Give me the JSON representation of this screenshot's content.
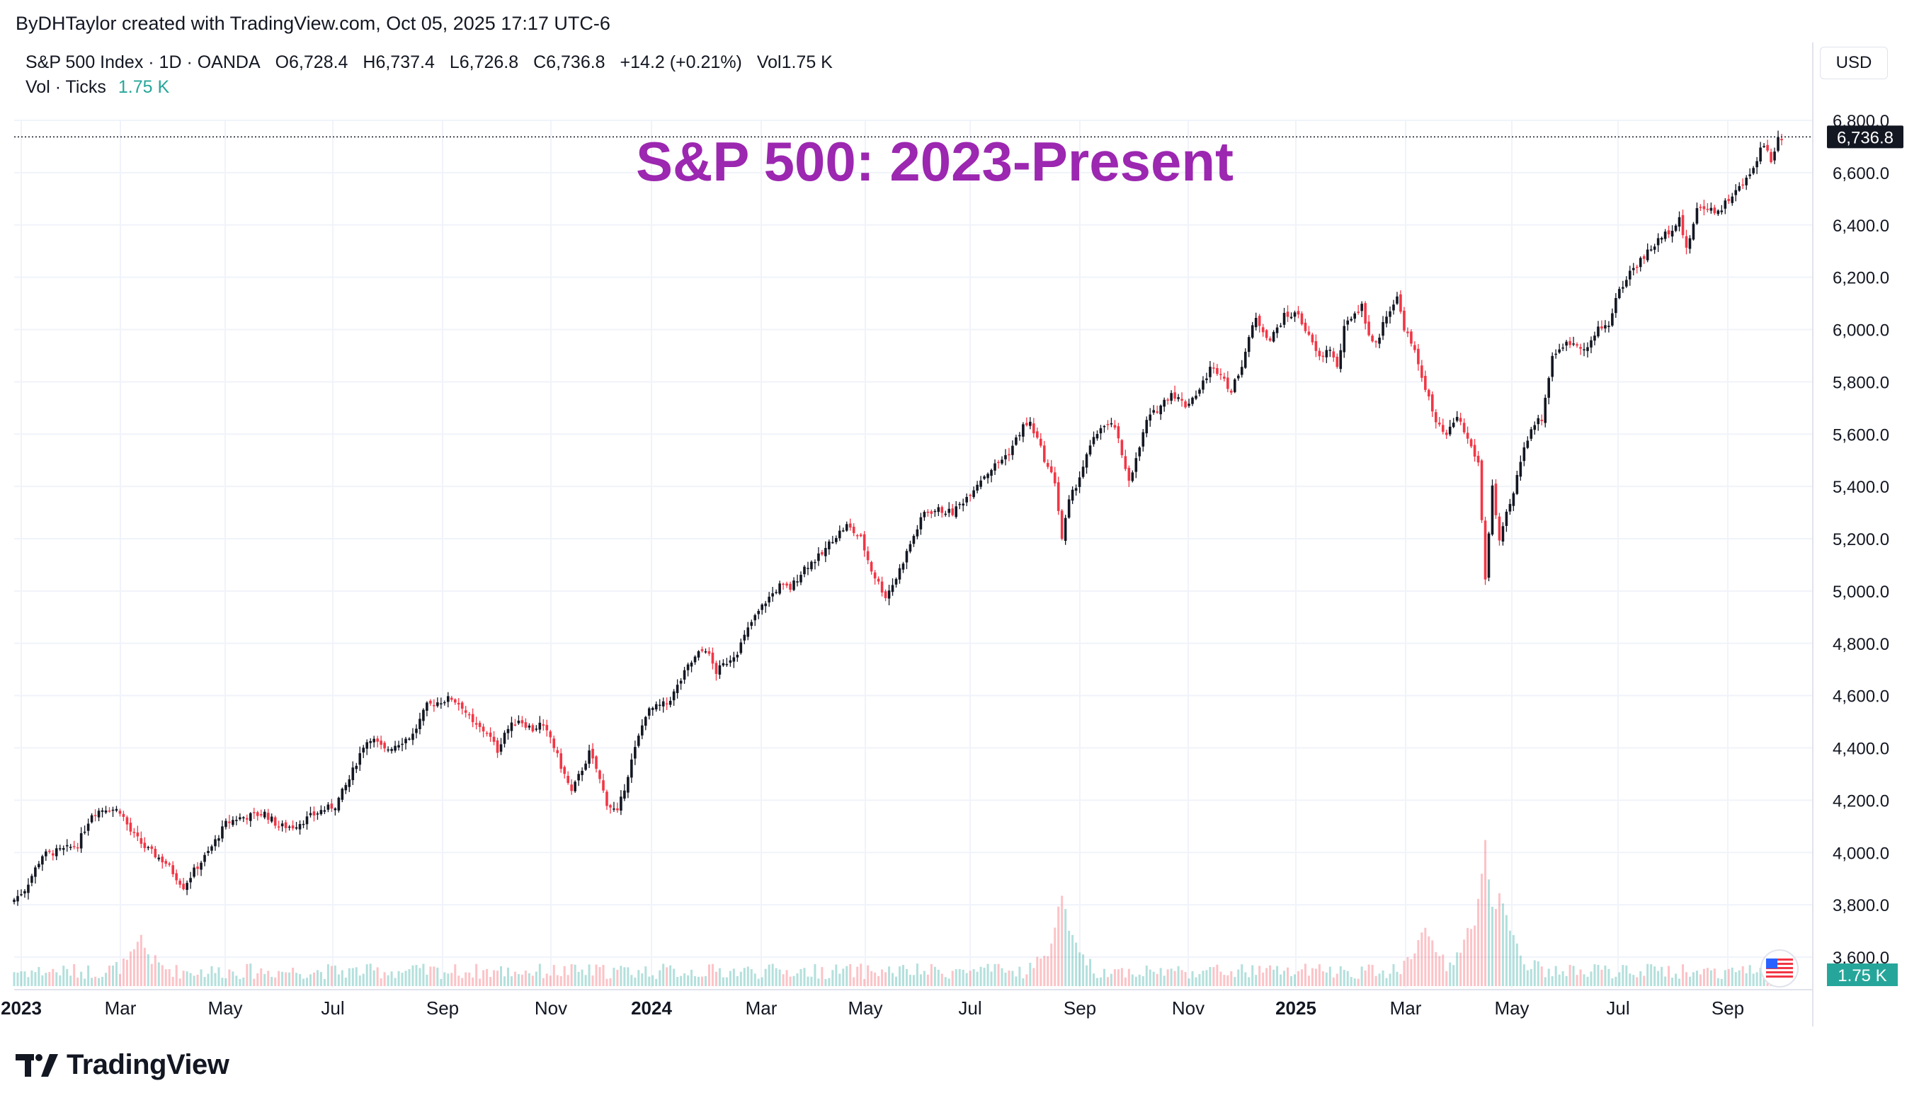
{
  "header": {
    "attribution": "ByDHTaylor created with TradingView.com, Oct 05, 2025 17:17 UTC-6"
  },
  "legend": {
    "symbol": "S&P 500 Index · 1D · OANDA",
    "open": "O6,728.4",
    "high": "H6,737.4",
    "low": "L6,726.8",
    "close": "C6,736.8",
    "change": "+14.2 (+0.21%)",
    "volume": "Vol1.75 K",
    "vol_label": "Vol · Ticks",
    "vol_value": "1.75 K"
  },
  "currency_button": "USD",
  "brand": {
    "name": "TradingView"
  },
  "colors": {
    "up": "#131722",
    "down": "#f23645",
    "vol_up": "#26a69a",
    "vol_down": "#f7525f",
    "title": "#9c27b0",
    "vol_badge": "#26a69a"
  },
  "chart_data": {
    "type": "candlestick",
    "title": "S&P 500: 2023-Present",
    "y_axis": {
      "min": 3600,
      "max": 6800,
      "ticks": [
        "6,800.0",
        "6,600.0",
        "6,400.0",
        "6,200.0",
        "6,000.0",
        "5,800.0",
        "5,600.0",
        "5,400.0",
        "5,200.0",
        "5,000.0",
        "4,800.0",
        "4,600.0",
        "4,400.0",
        "4,200.0",
        "4,000.0",
        "3,800.0",
        "3,600.0"
      ]
    },
    "x_axis": {
      "labels": [
        "2023",
        "Mar",
        "May",
        "Jul",
        "Sep",
        "Nov",
        "2024",
        "Mar",
        "May",
        "Jul",
        "Sep",
        "Nov",
        "2025",
        "Mar",
        "May",
        "Jul",
        "Sep"
      ],
      "bold": [
        true,
        false,
        false,
        false,
        false,
        false,
        true,
        false,
        false,
        false,
        false,
        false,
        true,
        false,
        false,
        false,
        false
      ]
    },
    "last_price": "6,736.8",
    "last_price_value": 6736.8,
    "last_volume": "1.75 K",
    "price_path": [
      [
        0,
        3820
      ],
      [
        3,
        3860
      ],
      [
        8,
        3990
      ],
      [
        14,
        4010
      ],
      [
        18,
        4030
      ],
      [
        22,
        4150
      ],
      [
        26,
        4170
      ],
      [
        30,
        4160
      ],
      [
        33,
        4080
      ],
      [
        37,
        4020
      ],
      [
        40,
        3990
      ],
      [
        43,
        3960
      ],
      [
        48,
        3870
      ],
      [
        51,
        3930
      ],
      [
        55,
        4000
      ],
      [
        60,
        4110
      ],
      [
        63,
        4130
      ],
      [
        67,
        4140
      ],
      [
        71,
        4150
      ],
      [
        75,
        4100
      ],
      [
        79,
        4100
      ],
      [
        83,
        4130
      ],
      [
        87,
        4160
      ],
      [
        91,
        4180
      ],
      [
        95,
        4280
      ],
      [
        99,
        4410
      ],
      [
        101,
        4440
      ],
      [
        105,
        4390
      ],
      [
        109,
        4420
      ],
      [
        113,
        4450
      ],
      [
        117,
        4560
      ],
      [
        121,
        4580
      ],
      [
        124,
        4590
      ],
      [
        127,
        4560
      ],
      [
        130,
        4490
      ],
      [
        134,
        4460
      ],
      [
        137,
        4390
      ],
      [
        139,
        4460
      ],
      [
        143,
        4510
      ],
      [
        147,
        4470
      ],
      [
        149,
        4490
      ],
      [
        152,
        4440
      ],
      [
        155,
        4330
      ],
      [
        158,
        4230
      ],
      [
        161,
        4320
      ],
      [
        163,
        4380
      ],
      [
        165,
        4320
      ],
      [
        168,
        4190
      ],
      [
        171,
        4150
      ],
      [
        175,
        4350
      ],
      [
        179,
        4530
      ],
      [
        181,
        4550
      ],
      [
        185,
        4570
      ],
      [
        187,
        4610
      ],
      [
        191,
        4710
      ],
      [
        194,
        4760
      ],
      [
        196,
        4780
      ],
      [
        199,
        4690
      ],
      [
        202,
        4730
      ],
      [
        205,
        4770
      ],
      [
        209,
        4880
      ],
      [
        213,
        4960
      ],
      [
        217,
        5020
      ],
      [
        220,
        5010
      ],
      [
        224,
        5090
      ],
      [
        229,
        5140
      ],
      [
        232,
        5200
      ],
      [
        236,
        5250
      ],
      [
        240,
        5200
      ],
      [
        243,
        5080
      ],
      [
        247,
        4980
      ],
      [
        250,
        5050
      ],
      [
        254,
        5180
      ],
      [
        258,
        5300
      ],
      [
        262,
        5310
      ],
      [
        266,
        5300
      ],
      [
        270,
        5360
      ],
      [
        274,
        5430
      ],
      [
        278,
        5480
      ],
      [
        282,
        5530
      ],
      [
        286,
        5630
      ],
      [
        288,
        5640
      ],
      [
        290,
        5580
      ],
      [
        293,
        5470
      ],
      [
        295,
        5420
      ],
      [
        297,
        5200
      ],
      [
        299,
        5340
      ],
      [
        302,
        5440
      ],
      [
        305,
        5550
      ],
      [
        308,
        5630
      ],
      [
        312,
        5630
      ],
      [
        314,
        5510
      ],
      [
        316,
        5430
      ],
      [
        318,
        5500
      ],
      [
        321,
        5650
      ],
      [
        325,
        5710
      ],
      [
        328,
        5760
      ],
      [
        332,
        5710
      ],
      [
        336,
        5770
      ],
      [
        339,
        5850
      ],
      [
        342,
        5840
      ],
      [
        345,
        5760
      ],
      [
        348,
        5870
      ],
      [
        350,
        5970
      ],
      [
        352,
        6040
      ],
      [
        356,
        5960
      ],
      [
        360,
        6050
      ],
      [
        364,
        6060
      ],
      [
        367,
        5970
      ],
      [
        370,
        5890
      ],
      [
        373,
        5930
      ],
      [
        375,
        5850
      ],
      [
        377,
        6000
      ],
      [
        379,
        6050
      ],
      [
        382,
        6090
      ],
      [
        384,
        5980
      ],
      [
        386,
        5940
      ],
      [
        389,
        6060
      ],
      [
        392,
        6120
      ],
      [
        394,
        6010
      ],
      [
        397,
        5910
      ],
      [
        400,
        5780
      ],
      [
        403,
        5640
      ],
      [
        406,
        5590
      ],
      [
        409,
        5670
      ],
      [
        412,
        5580
      ],
      [
        415,
        5490
      ],
      [
        417,
        5050
      ],
      [
        419,
        5400
      ],
      [
        421,
        5180
      ],
      [
        423,
        5290
      ],
      [
        425,
        5370
      ],
      [
        427,
        5500
      ],
      [
        430,
        5630
      ],
      [
        433,
        5660
      ],
      [
        436,
        5900
      ],
      [
        439,
        5940
      ],
      [
        442,
        5950
      ],
      [
        446,
        5930
      ],
      [
        449,
        6000
      ],
      [
        452,
        6020
      ],
      [
        454,
        6120
      ],
      [
        458,
        6220
      ],
      [
        462,
        6280
      ],
      [
        466,
        6340
      ],
      [
        470,
        6390
      ],
      [
        472,
        6430
      ],
      [
        474,
        6300
      ],
      [
        477,
        6460
      ],
      [
        480,
        6470
      ],
      [
        483,
        6450
      ],
      [
        486,
        6500
      ],
      [
        489,
        6540
      ],
      [
        492,
        6590
      ],
      [
        495,
        6690
      ],
      [
        496,
        6710
      ],
      [
        498,
        6650
      ],
      [
        500,
        6730
      ],
      [
        501,
        6736.8
      ]
    ],
    "volume_spikes": [
      [
        36,
        1.2
      ],
      [
        297,
        2.9
      ],
      [
        400,
        1.8
      ],
      [
        412,
        1.5
      ],
      [
        417,
        4.8
      ],
      [
        421,
        3.0
      ],
      [
        423,
        2.0
      ]
    ],
    "rng_seed": 7
  }
}
